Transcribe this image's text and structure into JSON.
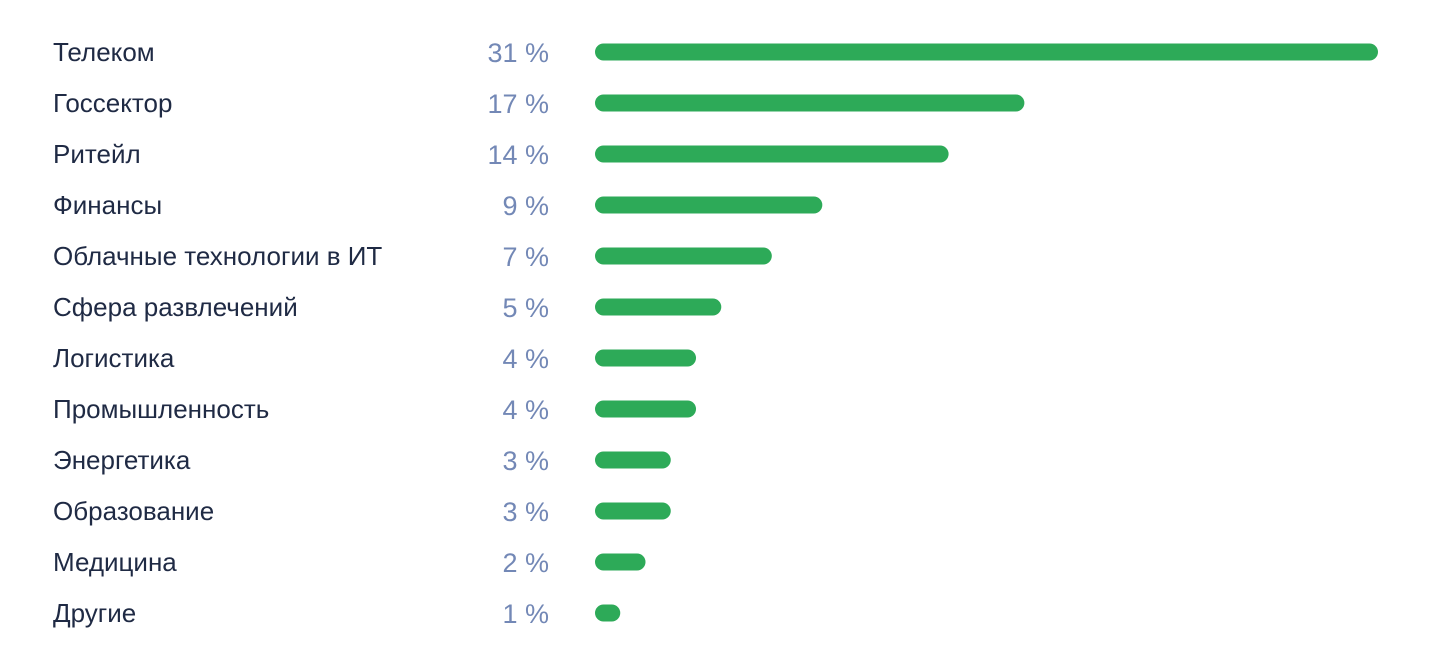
{
  "chart_data": {
    "type": "bar",
    "orientation": "horizontal",
    "categories": [
      "Телеком",
      "Госсектор",
      "Ритейл",
      "Финансы",
      "Облачные технологии в ИТ",
      "Сфера развлечений",
      "Логистика",
      "Промышленность",
      "Энергетика",
      "Образование",
      "Медицина",
      "Другие"
    ],
    "values": [
      31,
      17,
      14,
      9,
      7,
      5,
      4,
      4,
      3,
      3,
      2,
      1
    ],
    "value_labels": [
      "31 %",
      "17 %",
      "14 %",
      "9 %",
      "7 %",
      "5 %",
      "4 %",
      "4 %",
      "3 %",
      "3 %",
      "2 %",
      "1 %"
    ],
    "unit": "%",
    "xlim": [
      0,
      31
    ],
    "grid": false,
    "legend": "none",
    "colors": {
      "bar": "#2daa58",
      "category_text": "#1f2a44",
      "value_text": "#7388b6"
    }
  }
}
